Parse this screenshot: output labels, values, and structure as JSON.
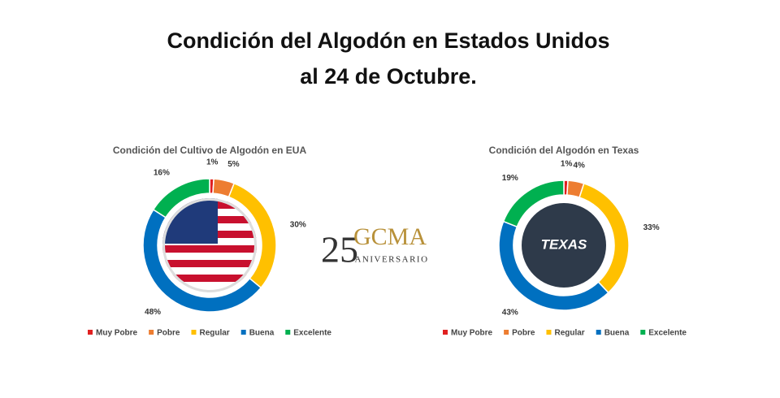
{
  "header": {
    "title": [
      "Condición del Algodón en Estados Unidos",
      "al 24 de Octubre."
    ]
  },
  "logo": {
    "number": "25",
    "name": "GCMA",
    "subtitle": "ANIVERSARIO"
  },
  "chart_data": [
    {
      "type": "donut",
      "title": "Condición del Cultivo de Algodón en EUA",
      "categories": [
        "Muy Pobre",
        "Pobre",
        "Regular",
        "Buena",
        "Excelente"
      ],
      "values": [
        1,
        5,
        30,
        48,
        16
      ],
      "value_labels": [
        "1%",
        "5%",
        "30%",
        "48%",
        "16%"
      ],
      "colors": [
        "#e02020",
        "#ed7d31",
        "#ffc000",
        "#0070c0",
        "#00b050"
      ]
    },
    {
      "type": "donut",
      "title": "Condición del Algodón en Texas",
      "center_label": "TEXAS",
      "categories": [
        "Muy Pobre",
        "Pobre",
        "Regular",
        "Buena",
        "Excelente"
      ],
      "values": [
        1,
        4,
        33,
        43,
        19
      ],
      "value_labels": [
        "1%",
        "4%",
        "33%",
        "43%",
        "19%"
      ],
      "colors": [
        "#e02020",
        "#ed7d31",
        "#ffc000",
        "#0070c0",
        "#00b050"
      ]
    }
  ]
}
